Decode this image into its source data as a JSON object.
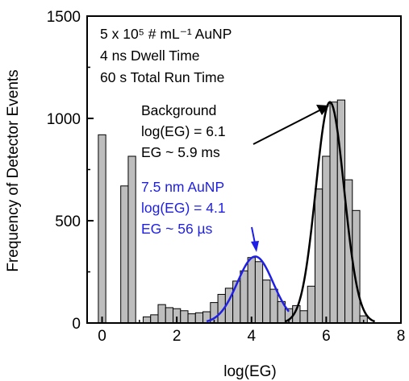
{
  "chart_data": {
    "type": "bar",
    "xlabel": "log(EG)",
    "ylabel": "Frequency of Detector Events",
    "xlim": [
      -0.4,
      8
    ],
    "ylim": [
      0,
      1500
    ],
    "xticks": [
      "0",
      "2",
      "4",
      "6",
      "8"
    ],
    "xtick_values": [
      0,
      2,
      4,
      6,
      8
    ],
    "yticks": [
      "0",
      "500",
      "1000",
      "1500"
    ],
    "ytick_values": [
      0,
      500,
      1000,
      1500
    ],
    "grid": false,
    "bin_width": 0.2,
    "bar_fill": "#bdbdbd",
    "bars": [
      {
        "x": 0.0,
        "y": 920
      },
      {
        "x": 0.6,
        "y": 670
      },
      {
        "x": 0.8,
        "y": 815
      },
      {
        "x": 1.2,
        "y": 30
      },
      {
        "x": 1.4,
        "y": 40
      },
      {
        "x": 1.6,
        "y": 90
      },
      {
        "x": 1.8,
        "y": 75
      },
      {
        "x": 2.0,
        "y": 70
      },
      {
        "x": 2.2,
        "y": 60
      },
      {
        "x": 2.4,
        "y": 45
      },
      {
        "x": 2.6,
        "y": 50
      },
      {
        "x": 2.8,
        "y": 55
      },
      {
        "x": 3.0,
        "y": 100
      },
      {
        "x": 3.2,
        "y": 140
      },
      {
        "x": 3.4,
        "y": 170
      },
      {
        "x": 3.6,
        "y": 205
      },
      {
        "x": 3.8,
        "y": 255
      },
      {
        "x": 4.0,
        "y": 320
      },
      {
        "x": 4.2,
        "y": 300
      },
      {
        "x": 4.4,
        "y": 210
      },
      {
        "x": 4.6,
        "y": 165
      },
      {
        "x": 4.8,
        "y": 105
      },
      {
        "x": 5.0,
        "y": 70
      },
      {
        "x": 5.2,
        "y": 85
      },
      {
        "x": 5.4,
        "y": 60
      },
      {
        "x": 5.6,
        "y": 180
      },
      {
        "x": 5.8,
        "y": 655
      },
      {
        "x": 6.0,
        "y": 815
      },
      {
        "x": 6.2,
        "y": 1080
      },
      {
        "x": 6.4,
        "y": 1090
      },
      {
        "x": 6.6,
        "y": 700
      },
      {
        "x": 6.8,
        "y": 550
      },
      {
        "x": 7.0,
        "y": 35
      }
    ],
    "fits": [
      {
        "color": "#1f1fe6",
        "center": 4.1,
        "amplitude": 325,
        "sigma": 0.48,
        "x_range": [
          2.8,
          5.0
        ]
      },
      {
        "color": "#000000",
        "center": 6.1,
        "amplitude": 1080,
        "sigma": 0.38,
        "x_range": [
          4.9,
          7.3
        ]
      }
    ],
    "annotations": {
      "info": [
        "5 x 10⁵ # mL⁻¹ AuNP",
        "4 ns Dwell Time",
        "60 s Total Run Time"
      ],
      "background": {
        "lines": [
          "Background",
          "log(EG) = 6.1",
          "EG ~ 5.9 ms"
        ],
        "color": "#000000"
      },
      "aunp": {
        "lines": [
          "7.5 nm AuNP",
          "log(EG) = 4.1",
          "EG ~ 56 µs"
        ],
        "color": "#1f1fe6"
      }
    }
  }
}
